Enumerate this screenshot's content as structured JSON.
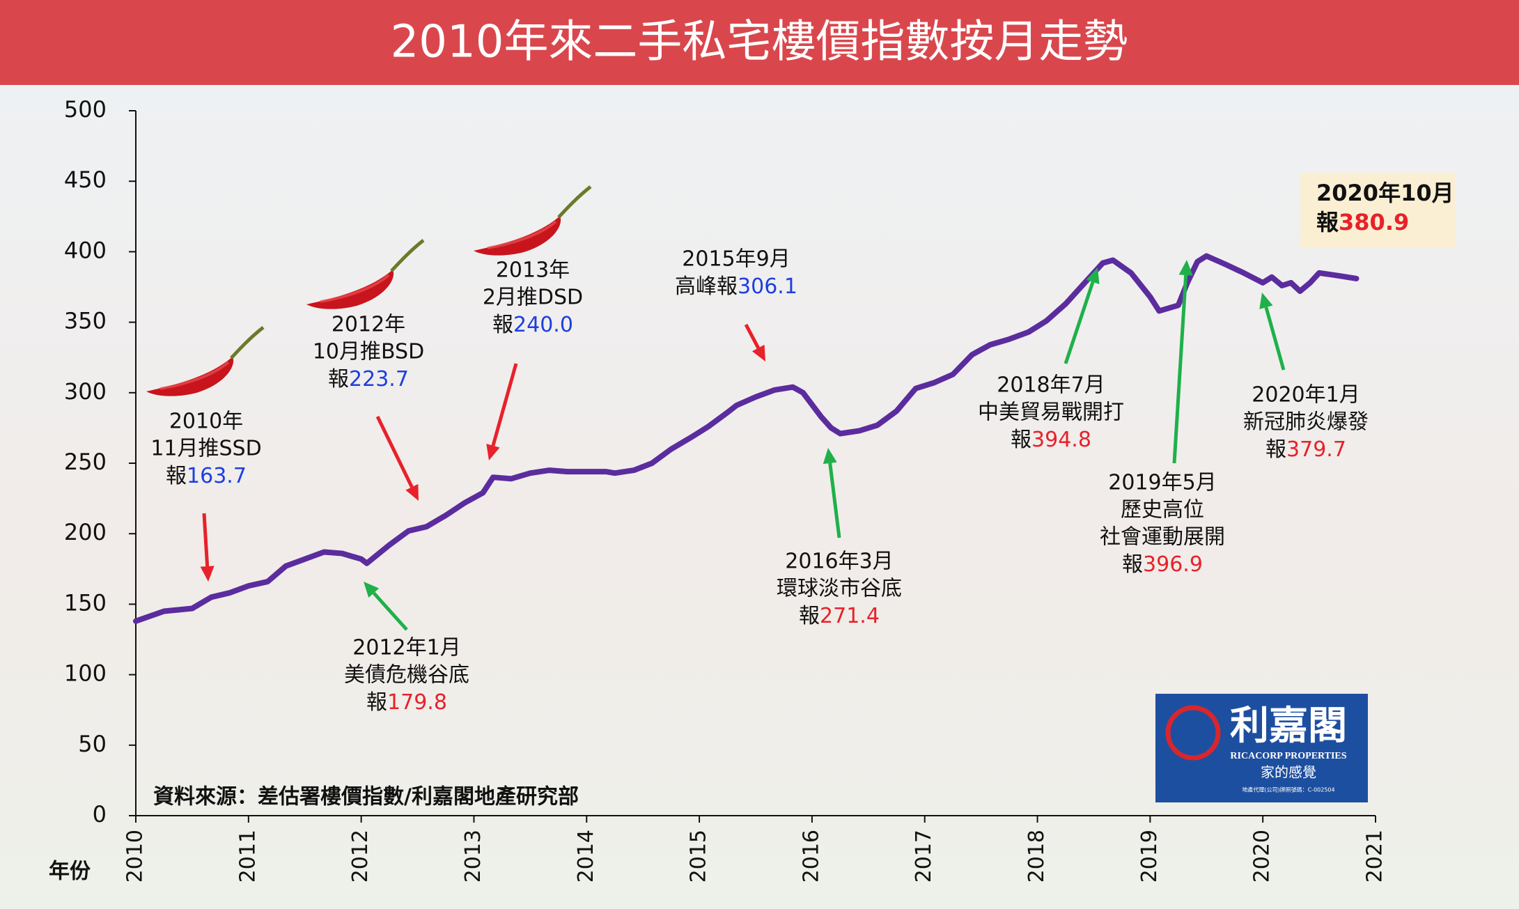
{
  "chart_data": {
    "type": "line",
    "title": "2010年來二手私宅樓價指數按月走勢",
    "x_label": "年份",
    "source": "資料來源：差估署樓價指數/利嘉閣地產研究部",
    "color": "#5b2c9e",
    "x": [
      2010.0,
      2010.25,
      2010.5,
      2010.67,
      2010.83,
      2011.0,
      2011.17,
      2011.33,
      2011.5,
      2011.67,
      2011.83,
      2012.0,
      2012.05,
      2012.25,
      2012.42,
      2012.58,
      2012.75,
      2012.92,
      2013.08,
      2013.17,
      2013.33,
      2013.5,
      2013.67,
      2013.83,
      2014.0,
      2014.17,
      2014.25,
      2014.42,
      2014.58,
      2014.75,
      2014.92,
      2015.08,
      2015.25,
      2015.33,
      2015.5,
      2015.67,
      2015.83,
      2015.92,
      2016.08,
      2016.17,
      2016.25,
      2016.42,
      2016.58,
      2016.75,
      2016.92,
      2017.08,
      2017.25,
      2017.42,
      2017.58,
      2017.75,
      2017.92,
      2018.08,
      2018.25,
      2018.42,
      2018.58,
      2018.67,
      2018.83,
      2019.0,
      2019.08,
      2019.25,
      2019.33,
      2019.42,
      2019.5,
      2019.67,
      2019.83,
      2020.0,
      2020.08,
      2020.17,
      2020.25,
      2020.33,
      2020.42,
      2020.5,
      2020.67,
      2020.83
    ],
    "values": [
      138,
      145,
      147,
      155,
      158,
      163,
      166,
      177,
      182,
      187,
      186,
      182,
      179,
      192,
      202,
      205,
      213,
      222,
      229,
      240,
      239,
      243,
      245,
      244,
      244,
      244,
      243,
      245,
      250,
      260,
      268,
      276,
      286,
      291,
      297,
      302,
      304,
      300,
      283,
      275,
      271,
      273,
      277,
      287,
      303,
      307,
      313,
      327,
      334,
      338,
      343,
      351,
      363,
      378,
      392,
      394,
      385,
      368,
      358,
      362,
      378,
      393,
      397,
      391,
      385,
      378,
      382,
      376,
      378,
      372,
      378,
      385,
      383,
      381
    ],
    "xlim": [
      2010,
      2021
    ],
    "xticks": [
      2010,
      2011,
      2012,
      2013,
      2014,
      2015,
      2016,
      2017,
      2018,
      2019,
      2020,
      2021
    ],
    "ylim": [
      0,
      500
    ],
    "yticks": [
      0,
      50,
      100,
      150,
      200,
      250,
      300,
      350,
      400,
      450,
      500
    ],
    "annotations": [
      {
        "lines": [
          "2010年",
          "11月推SSD"
        ],
        "prefix": "報",
        "value": 163.7,
        "color": "#1d3fe0"
      },
      {
        "lines": [
          "2012年",
          "10月推BSD"
        ],
        "prefix": "報",
        "value": 223.7,
        "color": "#1d3fe0"
      },
      {
        "lines": [
          "2013年",
          "2月推DSD"
        ],
        "prefix": "報",
        "value": 240,
        "value_label": "240.0",
        "color": "#1d3fe0"
      },
      {
        "lines": [
          "2015年9月"
        ],
        "prefix": "高峰報",
        "value": 306.1,
        "color": "#1d3fe0"
      },
      {
        "lines": [
          "2016年3月",
          "環球淡市谷底"
        ],
        "prefix": "報",
        "value": 271.4,
        "color": "#e8212a"
      },
      {
        "lines": [
          "2012年1月",
          "美債危機谷底"
        ],
        "prefix": "報",
        "value": 179.8,
        "color": "#e8212a"
      },
      {
        "lines": [
          "2018年7月",
          "中美貿易戰開打"
        ],
        "prefix": "報",
        "value": 394.8,
        "color": "#e8212a"
      },
      {
        "lines": [
          "2019年5月",
          "歷史高位",
          "社會運動展開"
        ],
        "prefix": "報",
        "value": 396.9,
        "color": "#e8212a"
      },
      {
        "lines": [
          "2020年1月",
          "新冠肺炎爆發"
        ],
        "prefix": "報",
        "value": 379.7,
        "color": "#e8212a"
      }
    ],
    "callout": {
      "lines": [
        "2020年10月"
      ],
      "prefix": "報",
      "value": 380.9,
      "color": "#e8212a"
    },
    "logo": {
      "name": "利嘉閣",
      "english": "RICACORP PROPERTIES",
      "slogan": "家的感覺",
      "license": "地產代理(公司)牌照號碼：C-002504"
    }
  }
}
